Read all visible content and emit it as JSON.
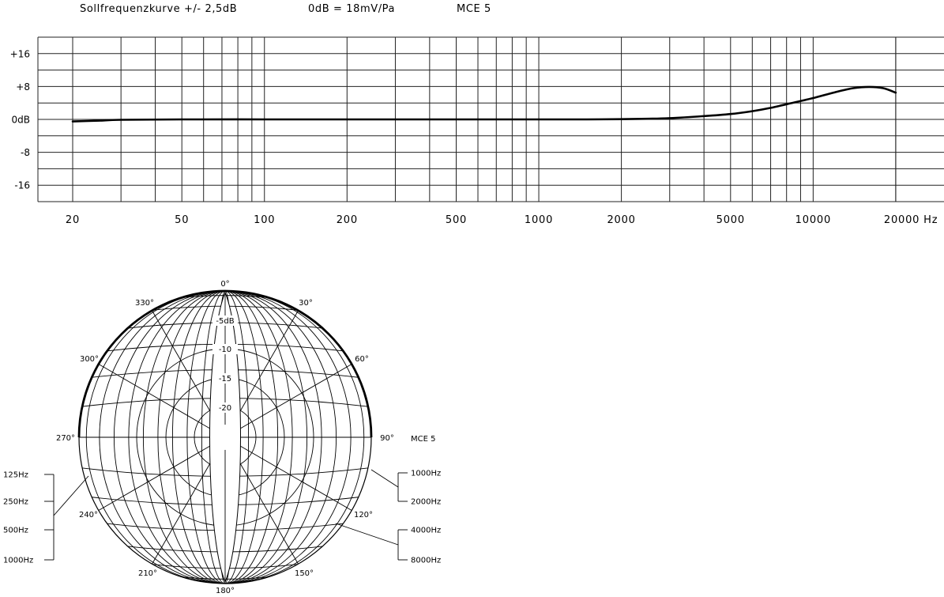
{
  "header": {
    "tolerance": "Sollfrequenzkurve +/- 2,5dB",
    "sensitivity": "0dB = 18mV/Pa",
    "model": "MCE 5"
  },
  "chart_data": [
    {
      "type": "line",
      "title": "Sollfrequenzkurve +/- 2,5dB",
      "xscale": "log",
      "x_unit": "Hz",
      "xlim": [
        20,
        20000
      ],
      "ylim": [
        -20,
        20
      ],
      "grid": true,
      "x_tick_labels": [
        {
          "value": 20,
          "label": "20"
        },
        {
          "value": 50,
          "label": "50"
        },
        {
          "value": 100,
          "label": "100"
        },
        {
          "value": 200,
          "label": "200"
        },
        {
          "value": 500,
          "label": "500"
        },
        {
          "value": 1000,
          "label": "1000"
        },
        {
          "value": 2000,
          "label": "2000"
        },
        {
          "value": 5000,
          "label": "5000"
        },
        {
          "value": 10000,
          "label": "10000"
        },
        {
          "value": 20000,
          "label": "20000 Hz"
        }
      ],
      "y_tick_labels": [
        {
          "value": 16,
          "label": "+16"
        },
        {
          "value": 8,
          "label": "+8"
        },
        {
          "value": 0,
          "label": "0dB"
        },
        {
          "value": -8,
          "label": "-8"
        },
        {
          "value": -16,
          "label": "-16"
        }
      ],
      "series": [
        {
          "x": [
            20,
            25,
            30,
            50,
            100,
            200,
            500,
            1000,
            1500,
            2000,
            2500,
            3000,
            4000,
            5000,
            6000,
            7000,
            8000,
            10000,
            12000,
            14000,
            16000,
            18000,
            20000
          ],
          "y": [
            -0.5,
            -0.3,
            -0.1,
            0,
            0,
            0,
            0,
            0,
            0,
            0.05,
            0.15,
            0.3,
            0.8,
            1.3,
            2.0,
            2.8,
            3.7,
            5.2,
            6.6,
            7.6,
            7.9,
            7.6,
            6.5
          ]
        }
      ]
    },
    {
      "type": "polar",
      "angle_labels": [
        "0°",
        "30°",
        "60°",
        "90°",
        "120°",
        "150°",
        "180°",
        "210°",
        "240°",
        "270°",
        "300°",
        "330°"
      ],
      "ring_labels": [
        "-5dB",
        "-10",
        "-15",
        "-20"
      ],
      "model_label": "MCE 5",
      "left_legend": [
        "125Hz",
        "250Hz",
        "500Hz",
        "1000Hz"
      ],
      "right_legend": [
        "1000Hz",
        "2000Hz",
        "4000Hz",
        "8000Hz"
      ]
    }
  ]
}
